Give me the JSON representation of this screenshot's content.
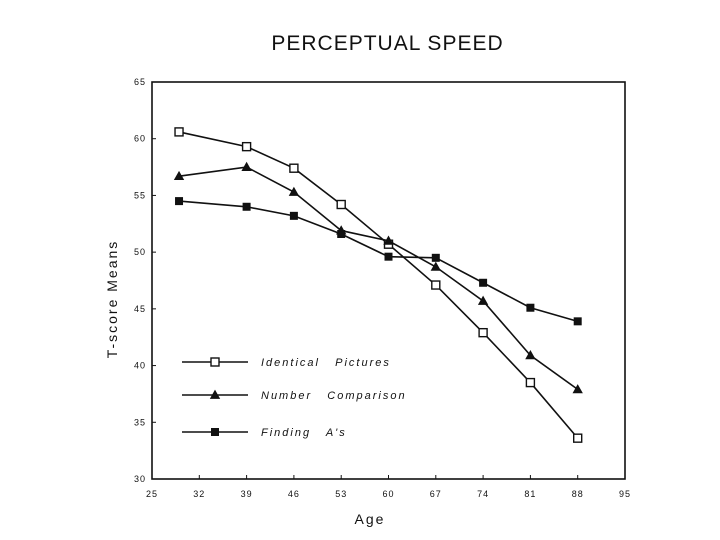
{
  "chart_data": {
    "type": "line",
    "title": "PERCEPTUAL SPEED",
    "xlabel": "Age",
    "ylabel": "T-score Means",
    "xlim": [
      25,
      95
    ],
    "ylim": [
      30,
      65
    ],
    "xticks": [
      "25",
      "32",
      "39",
      "46",
      "53",
      "60",
      "67",
      "74",
      "81",
      "88",
      "95"
    ],
    "yticks": [
      "30",
      "35",
      "40",
      "45",
      "50",
      "55",
      "60",
      "65"
    ],
    "x": [
      29,
      39,
      46,
      53,
      60,
      67,
      74,
      81,
      88
    ],
    "series": [
      {
        "name": "Identical   Pictures",
        "marker": "square-open",
        "values": [
          60.6,
          59.3,
          57.4,
          54.2,
          50.7,
          47.1,
          42.9,
          38.5,
          33.6
        ]
      },
      {
        "name": "Number   Comparison",
        "marker": "triangle",
        "values": [
          56.7,
          57.5,
          55.3,
          51.9,
          51.0,
          48.7,
          45.7,
          40.9,
          37.9
        ]
      },
      {
        "name": "Finding   A's",
        "marker": "square-filled",
        "values": [
          54.5,
          54.0,
          53.2,
          51.6,
          49.6,
          49.5,
          47.3,
          45.1,
          43.9
        ]
      }
    ],
    "legend_position": "bottom-left",
    "grid": false
  }
}
